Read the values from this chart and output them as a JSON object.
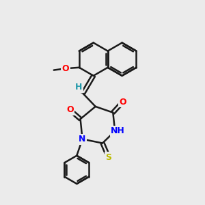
{
  "bg_color": "#ebebeb",
  "bond_color": "#1a1a1a",
  "bond_width": 1.8,
  "atom_colors": {
    "O": "#ff0000",
    "N": "#0000ff",
    "S": "#bbbb00",
    "H": "#2299aa",
    "C": "#1a1a1a"
  },
  "font_size": 9
}
